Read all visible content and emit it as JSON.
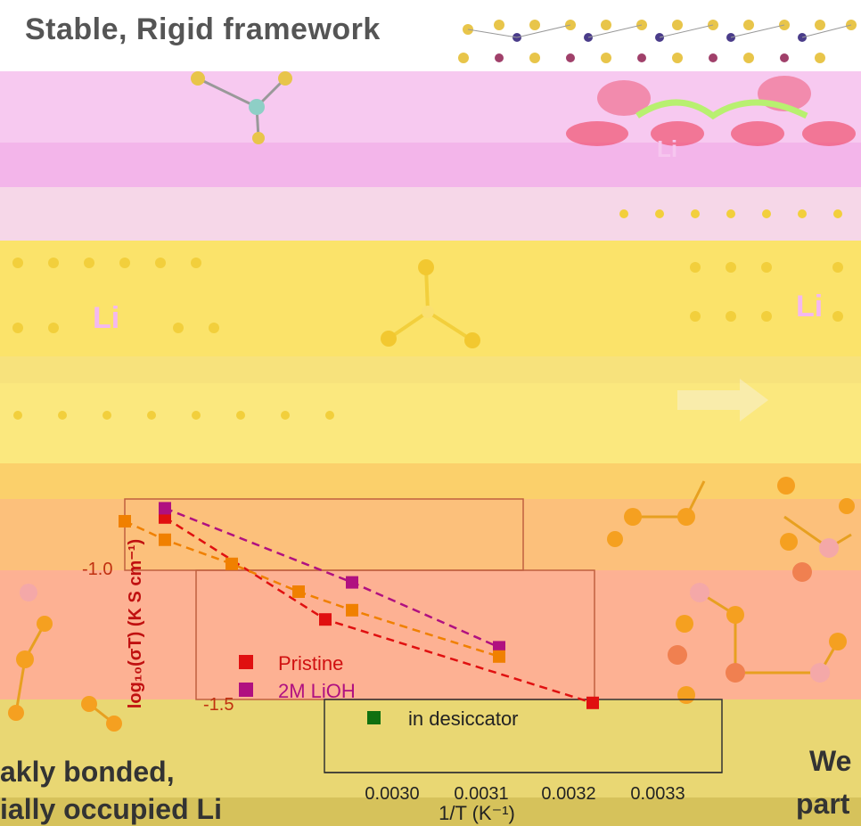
{
  "title": "Stable, Rigid framework",
  "li_labels": [
    "Li",
    "Li",
    "Li"
  ],
  "caption_left_1": "akly bonded,",
  "caption_left_2": "ially occupied Li",
  "caption_right_1": "We",
  "caption_right_2": "part",
  "chart_data": {
    "type": "scatter",
    "xlabel": "1/T (K⁻¹)",
    "ylabel": "log₁₀(σT) (K S cm⁻¹)",
    "x_ticks": [
      "0.0030",
      "0.0031",
      "0.0032",
      "0.0033"
    ],
    "y_ticks": [
      "-1.0",
      "-1.5"
    ],
    "xlim": [
      0.00293,
      0.00337
    ],
    "ylim": [
      -1.75,
      -0.5
    ],
    "series": [
      {
        "name": "Pristine",
        "color": "#e01010",
        "x": [
          0.00296,
          0.00308,
          0.00328
        ],
        "y": [
          -0.6,
          -1.15,
          -1.6
        ]
      },
      {
        "name": "2M LiOH",
        "color": "#b01080",
        "x": [
          0.00296,
          0.0031,
          0.00321
        ],
        "y": [
          -0.55,
          -0.95,
          -1.3
        ]
      },
      {
        "name": "",
        "color": "#f08000",
        "x": [
          0.00293,
          0.00296,
          0.00301,
          0.00306,
          0.0031,
          0.00321
        ],
        "y": [
          -0.62,
          -0.72,
          -0.85,
          -1.0,
          -1.1,
          -1.35
        ]
      },
      {
        "name": "in desiccator",
        "color": "#107010",
        "x": [],
        "y": []
      }
    ],
    "legend": [
      "Pristine",
      "2M LiOH",
      "in desiccator"
    ]
  }
}
